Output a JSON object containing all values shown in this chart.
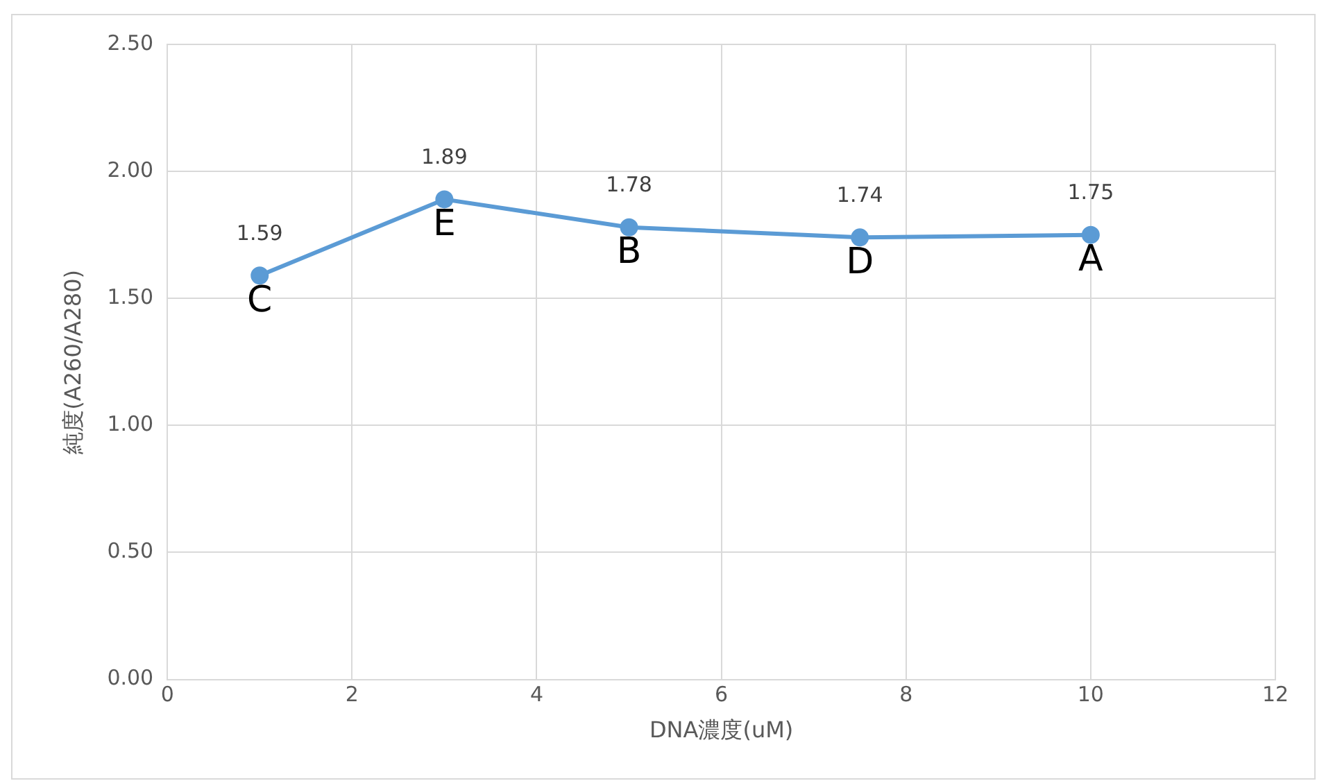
{
  "chart_data": {
    "type": "line",
    "xlabel": "DNA濃度(uM)",
    "ylabel": "純度(A260/A280)",
    "x": [
      1,
      3,
      5,
      7.5,
      10
    ],
    "series": [
      {
        "color": "#5b9bd5",
        "values": [
          1.59,
          1.89,
          1.78,
          1.74,
          1.75
        ]
      }
    ],
    "xlim": [
      0,
      12
    ],
    "xticks": [
      0,
      2,
      4,
      6,
      8,
      10,
      12
    ],
    "ylim": [
      0,
      2.5
    ],
    "yticks": [
      {
        "value": 0,
        "label": "0.00"
      },
      {
        "value": 0.5,
        "label": "0.50"
      },
      {
        "value": 1,
        "label": "1.00"
      },
      {
        "value": 1.5,
        "label": "1.50"
      },
      {
        "value": 2,
        "label": "2.00"
      },
      {
        "value": 2.5,
        "label": "2.50"
      }
    ],
    "grid": true,
    "legend": false,
    "marker": "circle",
    "line_style": "solid",
    "data_labels": true,
    "annotations": [
      {
        "text": "C",
        "x": 1,
        "y": 1.59
      },
      {
        "text": "E",
        "x": 3,
        "y": 1.89
      },
      {
        "text": "B",
        "x": 5,
        "y": 1.78
      },
      {
        "text": "D",
        "x": 7.5,
        "y": 1.74
      },
      {
        "text": "A",
        "x": 10,
        "y": 1.75
      }
    ]
  }
}
